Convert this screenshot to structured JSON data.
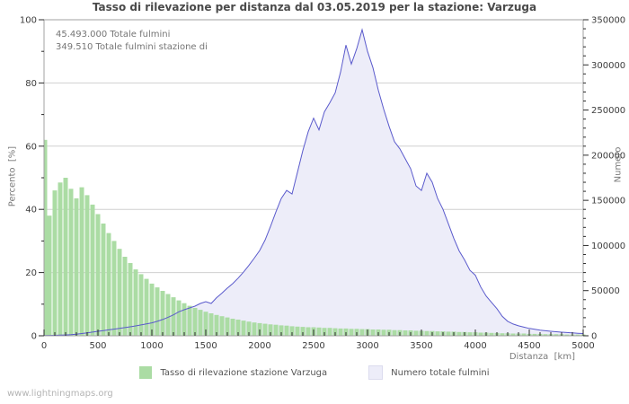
{
  "page": {
    "watermark": "www.lightningmaps.org"
  },
  "chart_data": {
    "type": "combo",
    "title": "Tasso di rilevazione per distanza dal 03.05.2019 per la stazione: Varzuga",
    "annotations": [
      "45.493.000 Totale fulmini",
      "349.510 Totale fulmini stazione di"
    ],
    "x_axis": {
      "label": "Distanza  [km]",
      "min": 0,
      "max": 5000,
      "major": 500,
      "minor": 100,
      "tick_labels": [
        "0",
        "500",
        "1000",
        "1500",
        "2000",
        "2500",
        "3000",
        "3500",
        "4000",
        "4500",
        "5000"
      ]
    },
    "y_left": {
      "label": "Percento  [%]",
      "min": 0,
      "max": 100,
      "major": 20,
      "minor": 10,
      "tick_labels": [
        "0",
        "20",
        "40",
        "60",
        "80",
        "100"
      ]
    },
    "y_right": {
      "label": "Numero",
      "min": 0,
      "max": 350000,
      "major": 50000,
      "minor": 10000,
      "tick_labels": [
        "0",
        "50000",
        "100000",
        "150000",
        "200000",
        "250000",
        "300000",
        "350000"
      ]
    },
    "grid": "horizontal",
    "legend_position": "bottom",
    "step_km": 50,
    "colors": {
      "grid": "#d0d0d0",
      "frame": "#a0a0a0",
      "tick": "#2a2a2a"
    },
    "series": [
      {
        "name": "Tasso di rilevazione stazione Varzuga",
        "type": "bar",
        "axis": "left",
        "color": "#abdca4",
        "values": [
          62,
          38,
          46,
          48.5,
          50,
          46.5,
          43.5,
          47,
          44.5,
          41.5,
          38.5,
          35.5,
          32.5,
          30,
          27.5,
          25,
          23,
          21,
          19.5,
          18,
          16.5,
          15.3,
          14.2,
          13.2,
          12.2,
          11.2,
          10.3,
          9.5,
          8.8,
          8.2,
          7.6,
          7.1,
          6.6,
          6.2,
          5.8,
          5.4,
          5.1,
          4.8,
          4.5,
          4.2,
          4,
          3.8,
          3.6,
          3.5,
          3.3,
          3.2,
          3,
          2.9,
          2.8,
          2.7,
          2.7,
          2.6,
          2.5,
          2.5,
          2.4,
          2.3,
          2.3,
          2.2,
          2.2,
          2.1,
          2.1,
          2,
          2,
          1.9,
          1.9,
          1.8,
          1.8,
          1.7,
          1.7,
          1.6,
          1.6,
          1.5,
          1.5,
          1.4,
          1.4,
          1.3,
          1.3,
          1.2,
          1.2,
          1.1,
          1.1,
          1,
          1,
          0.9,
          0.9,
          0.8,
          0.8,
          0.7,
          0.7,
          0.7,
          0.6,
          0.6,
          0.6,
          0.5,
          0.5,
          0.5,
          0.5,
          0.4,
          0.4,
          0.4,
          0.4
        ]
      },
      {
        "name": "Numero totale fulmini",
        "type": "area",
        "axis": "right",
        "fill": "#ededf9",
        "line_color": "#5a5acc",
        "values": [
          300,
          400,
          500,
          650,
          850,
          1200,
          1800,
          2500,
          3200,
          4100,
          5000,
          5800,
          6600,
          7400,
          8200,
          9000,
          9900,
          10900,
          12000,
          13100,
          14300,
          16000,
          18000,
          20500,
          23200,
          26500,
          28800,
          30800,
          32800,
          35800,
          37800,
          35800,
          42200,
          47200,
          52800,
          57800,
          63800,
          70500,
          78000,
          86000,
          94500,
          106000,
          121000,
          137000,
          152000,
          161000,
          157000,
          181000,
          205000,
          226000,
          241000,
          228000,
          248000,
          258000,
          269000,
          292000,
          322000,
          301000,
          318000,
          339000,
          315000,
          297000,
          272000,
          251000,
          232000,
          215000,
          207000,
          196000,
          185000,
          166000,
          161000,
          180000,
          170000,
          152000,
          140000,
          124000,
          108000,
          94000,
          84000,
          72500,
          67000,
          54000,
          44000,
          37000,
          30000,
          21500,
          16000,
          13000,
          11000,
          9500,
          8200,
          7200,
          6300,
          5600,
          5000,
          4500,
          4000,
          3600,
          3200,
          2800,
          2500
        ]
      }
    ]
  }
}
